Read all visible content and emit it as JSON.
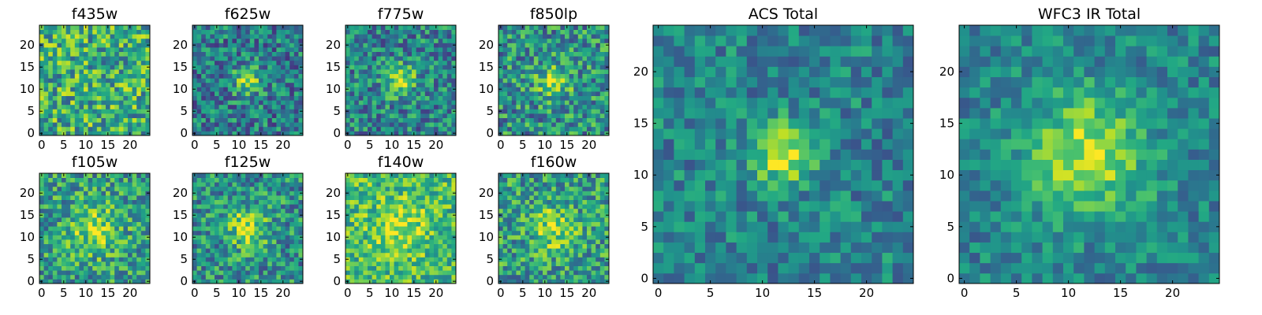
{
  "chart_data": [
    {
      "type": "heatmap",
      "title": "f435w",
      "grid_size": 25,
      "xlim": [
        -0.5,
        24.5
      ],
      "ylim": [
        -0.5,
        24.5
      ],
      "x_ticks": [
        0,
        5,
        10,
        15,
        20
      ],
      "y_ticks": [
        0,
        5,
        10,
        15,
        20
      ],
      "colormap": "viridis",
      "source_center": [
        12,
        12
      ],
      "source_strength": 0.0,
      "source_sigma": 2.5,
      "background": 0.62,
      "noise": 0.32,
      "seed": 11
    },
    {
      "type": "heatmap",
      "title": "f625w",
      "grid_size": 25,
      "xlim": [
        -0.5,
        24.5
      ],
      "ylim": [
        -0.5,
        24.5
      ],
      "x_ticks": [
        0,
        5,
        10,
        15,
        20
      ],
      "y_ticks": [
        0,
        5,
        10,
        15,
        20
      ],
      "colormap": "viridis",
      "source_center": [
        12,
        12
      ],
      "source_strength": 0.45,
      "source_sigma": 2.2,
      "background": 0.42,
      "noise": 0.28,
      "seed": 23
    },
    {
      "type": "heatmap",
      "title": "f775w",
      "grid_size": 25,
      "xlim": [
        -0.5,
        24.5
      ],
      "ylim": [
        -0.5,
        24.5
      ],
      "x_ticks": [
        0,
        5,
        10,
        15,
        20
      ],
      "y_ticks": [
        0,
        5,
        10,
        15,
        20
      ],
      "colormap": "viridis",
      "source_center": [
        12,
        12
      ],
      "source_strength": 0.45,
      "source_sigma": 2.4,
      "background": 0.45,
      "noise": 0.28,
      "seed": 37
    },
    {
      "type": "heatmap",
      "title": "f850lp",
      "grid_size": 25,
      "xlim": [
        -0.5,
        24.5
      ],
      "ylim": [
        -0.5,
        24.5
      ],
      "x_ticks": [
        0,
        5,
        10,
        15,
        20
      ],
      "y_ticks": [
        0,
        5,
        10,
        15,
        20
      ],
      "colormap": "viridis",
      "source_center": [
        12,
        12
      ],
      "source_strength": 0.35,
      "source_sigma": 2.6,
      "background": 0.5,
      "noise": 0.3,
      "seed": 41
    },
    {
      "type": "heatmap",
      "title": "ACS Total",
      "grid_size": 25,
      "xlim": [
        -0.5,
        24.5
      ],
      "ylim": [
        -0.5,
        24.5
      ],
      "x_ticks": [
        0,
        5,
        10,
        15,
        20
      ],
      "y_ticks": [
        0,
        5,
        10,
        15,
        20
      ],
      "colormap": "viridis",
      "source_center": [
        12,
        12
      ],
      "source_strength": 0.5,
      "source_sigma": 2.0,
      "background": 0.45,
      "noise": 0.2,
      "seed": 53
    },
    {
      "type": "heatmap",
      "title": "f105w",
      "grid_size": 25,
      "xlim": [
        -0.5,
        24.5
      ],
      "ylim": [
        -0.5,
        24.5
      ],
      "x_ticks": [
        0,
        5,
        10,
        15,
        20
      ],
      "y_ticks": [
        0,
        5,
        10,
        15,
        20
      ],
      "colormap": "viridis",
      "source_center": [
        12,
        12
      ],
      "source_strength": 0.3,
      "source_sigma": 4.0,
      "background": 0.55,
      "noise": 0.28,
      "seed": 67
    },
    {
      "type": "heatmap",
      "title": "f125w",
      "grid_size": 25,
      "xlim": [
        -0.5,
        24.5
      ],
      "ylim": [
        -0.5,
        24.5
      ],
      "x_ticks": [
        0,
        5,
        10,
        15,
        20
      ],
      "y_ticks": [
        0,
        5,
        10,
        15,
        20
      ],
      "colormap": "viridis",
      "source_center": [
        12,
        12
      ],
      "source_strength": 0.4,
      "source_sigma": 3.2,
      "background": 0.5,
      "noise": 0.28,
      "seed": 71
    },
    {
      "type": "heatmap",
      "title": "f140w",
      "grid_size": 25,
      "xlim": [
        -0.5,
        24.5
      ],
      "ylim": [
        -0.5,
        24.5
      ],
      "x_ticks": [
        0,
        5,
        10,
        15,
        20
      ],
      "y_ticks": [
        0,
        5,
        10,
        15,
        20
      ],
      "colormap": "viridis",
      "source_center": [
        12,
        12
      ],
      "source_strength": 0.25,
      "source_sigma": 4.0,
      "background": 0.68,
      "noise": 0.25,
      "seed": 83
    },
    {
      "type": "heatmap",
      "title": "f160w",
      "grid_size": 25,
      "xlim": [
        -0.5,
        24.5
      ],
      "ylim": [
        -0.5,
        24.5
      ],
      "x_ticks": [
        0,
        5,
        10,
        15,
        20
      ],
      "y_ticks": [
        0,
        5,
        10,
        15,
        20
      ],
      "colormap": "viridis",
      "source_center": [
        12,
        12
      ],
      "source_strength": 0.3,
      "source_sigma": 3.5,
      "background": 0.55,
      "noise": 0.28,
      "seed": 97
    },
    {
      "type": "heatmap",
      "title": "WFC3 IR Total",
      "grid_size": 25,
      "xlim": [
        -0.5,
        24.5
      ],
      "ylim": [
        -0.5,
        24.5
      ],
      "x_ticks": [
        0,
        5,
        10,
        15,
        20
      ],
      "y_ticks": [
        0,
        5,
        10,
        15,
        20
      ],
      "colormap": "viridis",
      "source_center": [
        12,
        12
      ],
      "source_strength": 0.45,
      "source_sigma": 4.0,
      "background": 0.45,
      "noise": 0.18,
      "seed": 101
    }
  ]
}
